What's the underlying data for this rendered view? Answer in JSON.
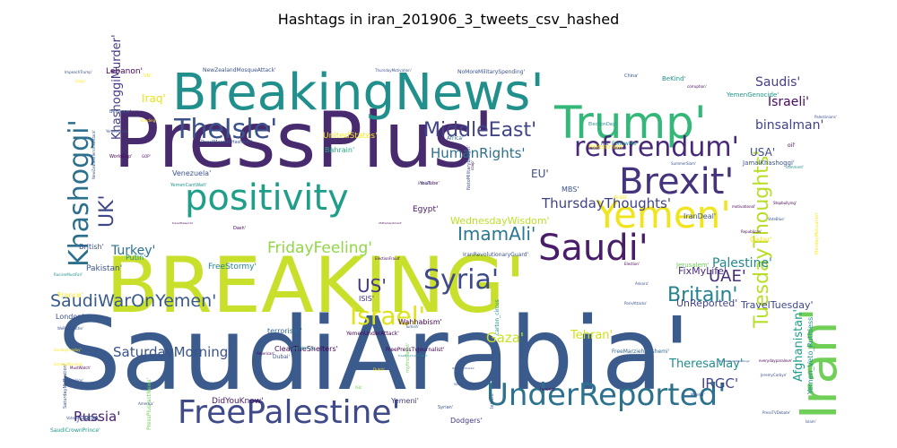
{
  "chart_data": {
    "type": "wordcloud",
    "title": "Hashtags in iran_201906_3_tweets_csv_hashed",
    "words": [
      {
        "text": "SaudiArabia'",
        "weight": 100,
        "color": "#3b5b8d"
      },
      {
        "text": "BREAKING'",
        "weight": 95,
        "color": "#c8df2c"
      },
      {
        "text": "PressPlus'",
        "weight": 92,
        "color": "#472b6e"
      },
      {
        "text": "BreakingNews'",
        "weight": 55,
        "color": "#21908d"
      },
      {
        "text": "Iran'",
        "weight": 52,
        "color": "#6fcf57"
      },
      {
        "text": "Trump'",
        "weight": 44,
        "color": "#35b779"
      },
      {
        "text": "Yemen'",
        "weight": 42,
        "color": "#f0e41e"
      },
      {
        "text": "Brexit'",
        "weight": 40,
        "color": "#45337d"
      },
      {
        "text": "Saudi'",
        "weight": 40,
        "color": "#4a1d6a"
      },
      {
        "text": "positivity",
        "weight": 38,
        "color": "#1f9e89"
      },
      {
        "text": "FreePalestine'",
        "weight": 36,
        "color": "#3e4a89"
      },
      {
        "text": "UnderReported'",
        "weight": 34,
        "color": "#2c728e"
      },
      {
        "text": "Khashoggi'",
        "weight": 33,
        "color": "#2d708e"
      },
      {
        "text": "referendum'",
        "weight": 30,
        "color": "#482878"
      },
      {
        "text": "TheIsle'",
        "weight": 30,
        "color": "#3b528b"
      },
      {
        "text": "Syria'",
        "weight": 30,
        "color": "#3e4989"
      },
      {
        "text": "Israel'",
        "weight": 28,
        "color": "#dde318"
      },
      {
        "text": "TuesdayThoughts'",
        "weight": 22,
        "color": "#b8de29"
      },
      {
        "text": "MiddleEast'",
        "weight": 22,
        "color": "#414487"
      },
      {
        "text": "UK'",
        "weight": 22,
        "color": "#3f4788"
      },
      {
        "text": "Britain'",
        "weight": 22,
        "color": "#26828e"
      },
      {
        "text": "ImamAli'",
        "weight": 20,
        "color": "#2a788e"
      },
      {
        "text": "US'",
        "weight": 20,
        "color": "#453781"
      },
      {
        "text": "SaudiWarOnYemen'",
        "weight": 19,
        "color": "#38598c"
      },
      {
        "text": "UAE'",
        "weight": 18,
        "color": "#46307e"
      },
      {
        "text": "FridayFeeling'",
        "weight": 17,
        "color": "#8fd744"
      },
      {
        "text": "Russia'",
        "weight": 15,
        "color": "#482173"
      },
      {
        "text": "Gaza'",
        "weight": 15,
        "color": "#cae11f"
      },
      {
        "text": "IRGC'",
        "weight": 15,
        "color": "#404688"
      },
      {
        "text": "ThursdayThoughts'",
        "weight": 15,
        "color": "#404387"
      },
      {
        "text": "HumanRights'",
        "weight": 15,
        "color": "#2e6f8e"
      },
      {
        "text": "SaturdayMorning'",
        "weight": 15,
        "color": "#3a538b"
      },
      {
        "text": "Palestine'",
        "weight": 14,
        "color": "#23888e"
      },
      {
        "text": "Israeli'",
        "weight": 14,
        "color": "#46085c"
      },
      {
        "text": "binsalman'",
        "weight": 14,
        "color": "#404387"
      },
      {
        "text": "Saudis'",
        "weight": 14,
        "color": "#433e85"
      },
      {
        "text": "Turkey'",
        "weight": 14,
        "color": "#2d718e"
      },
      {
        "text": "KhashoggiMurder'",
        "weight": 13,
        "color": "#433d84"
      },
      {
        "text": "Afghanistan'",
        "weight": 13,
        "color": "#1e9b8a"
      },
      {
        "text": "TheresaMay'",
        "weight": 13,
        "color": "#228c8d"
      },
      {
        "text": "Tehran'",
        "weight": 13,
        "color": "#d0e11c"
      },
      {
        "text": "EU'",
        "weight": 12,
        "color": "#3d4e8a"
      },
      {
        "text": "Iraq'",
        "weight": 12,
        "color": "#e7e419"
      },
      {
        "text": "USA'",
        "weight": 12,
        "color": "#3e4c8a"
      },
      {
        "text": "MotivationalQuotes'",
        "weight": 11,
        "color": "#31688e"
      },
      {
        "text": "TravelTuesday'",
        "weight": 11,
        "color": "#3e4a89"
      },
      {
        "text": "UnReported'",
        "weight": 11,
        "color": "#414287"
      },
      {
        "text": "PeacewithIran'",
        "weight": 11,
        "color": "#2c738e"
      },
      {
        "text": "WednesdayWisdom'",
        "weight": 11,
        "color": "#bddf26"
      },
      {
        "text": "FixMyLife'",
        "weight": 10,
        "color": "#472c7a"
      },
      {
        "text": "DidYouKnow'",
        "weight": 9,
        "color": "#481769"
      },
      {
        "text": "Lebanon'",
        "weight": 9,
        "color": "#440154"
      },
      {
        "text": "UnitedStates'",
        "weight": 9,
        "color": "#fde725"
      },
      {
        "text": "Pakistan'",
        "weight": 9,
        "color": "#3b528b"
      },
      {
        "text": "Egypt'",
        "weight": 9,
        "color": "#48186a"
      },
      {
        "text": "FreeStormy'",
        "weight": 9,
        "color": "#25838e"
      },
      {
        "text": "Yemeni'",
        "weight": 8,
        "color": "#424086"
      },
      {
        "text": "Dodgers'",
        "weight": 8,
        "color": "#453882"
      },
      {
        "text": "JCPOA'",
        "weight": 8,
        "color": "#3e4989"
      },
      {
        "text": "London'",
        "weight": 8,
        "color": "#3b528b"
      },
      {
        "text": "Yemen_Veto_Ruthless",
        "weight": 8,
        "color": "#1f968b"
      },
      {
        "text": "France'",
        "weight": 8,
        "color": "#fde725"
      },
      {
        "text": "Bahrain'",
        "weight": 8,
        "color": "#27ad81"
      },
      {
        "text": "Putin'",
        "weight": 8,
        "color": "#238a8d"
      },
      {
        "text": "British'",
        "weight": 8,
        "color": "#3b528b"
      },
      {
        "text": "Venezuela'",
        "weight": 8,
        "color": "#3b528b"
      },
      {
        "text": "ISIS'",
        "weight": 8,
        "color": "#46327e"
      },
      {
        "text": "Qatar'",
        "weight": 8,
        "color": "#fde725"
      },
      {
        "text": "Wahhabism'",
        "weight": 8,
        "color": "#440154"
      },
      {
        "text": "terrorism'",
        "weight": 8,
        "color": "#31688e"
      },
      {
        "text": "ClearTheShelters'",
        "weight": 8,
        "color": "#440154"
      },
      {
        "text": "MBS'",
        "weight": 8,
        "color": "#3b528b"
      },
      {
        "text": "IranDeal'",
        "weight": 8,
        "color": "#3b528b"
      },
      {
        "text": "Jerusalem'",
        "weight": 7,
        "color": "#6ece58"
      },
      {
        "text": "JamalKhashoggi'",
        "weight": 7,
        "color": "#3b528b"
      },
      {
        "text": "Palestinian'",
        "weight": 7,
        "color": "#fde725"
      },
      {
        "text": "BeKind'",
        "weight": 7,
        "color": "#21918c"
      },
      {
        "text": "YemenGenocide'",
        "weight": 7,
        "color": "#1f968b"
      },
      {
        "text": "NewZealandMosqueAttack'",
        "weight": 6,
        "color": "#3b528b"
      },
      {
        "text": "IranRevolutionaryGuard'",
        "weight": 6,
        "color": "#3b528b"
      },
      {
        "text": "FreeMarziehHashemi'",
        "weight": 6,
        "color": "#31688e"
      },
      {
        "text": "FreePressTvJournalist'",
        "weight": 6,
        "color": "#440154"
      },
      {
        "text": "NoMoreMilitarySpending'",
        "weight": 6,
        "color": "#3b528b"
      },
      {
        "text": "carton_circus",
        "weight": 6,
        "color": "#1f968b"
      },
      {
        "text": "SaudiCrownPrince'",
        "weight": 6,
        "color": "#1f968b"
      },
      {
        "text": "PressPlusFactNews'",
        "weight": 6,
        "color": "#6ece58"
      },
      {
        "text": "YemenUnderAttack'",
        "weight": 6,
        "color": "#440154"
      },
      {
        "text": "Arab'",
        "weight": 6,
        "color": "#fde725"
      },
      {
        "text": "Africa'",
        "weight": 6,
        "color": "#31688e"
      },
      {
        "text": "FollowMe'",
        "weight": 6,
        "color": "#21918c"
      },
      {
        "text": "Dubai'",
        "weight": 6,
        "color": "#3b528b"
      },
      {
        "text": "oil'",
        "weight": 6,
        "color": "#440154"
      },
      {
        "text": "China'",
        "weight": 5,
        "color": "#3b528b"
      },
      {
        "text": "WorldCup'",
        "weight": 5,
        "color": "#440154"
      },
      {
        "text": "BeHappy'",
        "weight": 5,
        "color": "#3b528b"
      },
      {
        "text": "UN'",
        "weight": 5,
        "color": "#fde725"
      },
      {
        "text": "Dash'",
        "weight": 5,
        "color": "#440154"
      },
      {
        "text": "Pray4MarziehHashemi'",
        "weight": 5,
        "color": "#3b528b"
      },
      {
        "text": "YemenCantWait'",
        "weight": 5,
        "color": "#1f968b"
      },
      {
        "text": "MondayMotivation'",
        "weight": 5,
        "color": "#fde725"
      },
      {
        "text": "myfirstTweet'",
        "weight": 5,
        "color": "#6ece58"
      },
      {
        "text": "leisure'",
        "weight": 5,
        "color": "#3b528b"
      },
      {
        "text": "Syrian'",
        "weight": 5,
        "color": "#3b528b"
      },
      {
        "text": "SaturdayMotivation'",
        "weight": 5,
        "color": "#3b528b"
      },
      {
        "text": "ElectionDay'",
        "weight": 5,
        "color": "#21918c"
      },
      {
        "text": "NotoMilitaryBudget'",
        "weight": 5,
        "color": "#3b528b"
      },
      {
        "text": "YouTube'",
        "weight": 5,
        "color": "#440154"
      },
      {
        "text": "RacismMustFall'",
        "weight": 4,
        "color": "#21918c"
      },
      {
        "text": "WeRepSeattle'",
        "weight": 4,
        "color": "#3b528b"
      },
      {
        "text": "technology'",
        "weight": 4,
        "color": "#3b528b"
      },
      {
        "text": "VoterFraud2018'",
        "weight": 4,
        "color": "#3b528b"
      },
      {
        "text": "Islam'",
        "weight": 4,
        "color": "#3b528b"
      },
      {
        "text": "Europe'",
        "weight": 4,
        "color": "#3b528b"
      },
      {
        "text": "ThursdayMotivation'",
        "weight": 4,
        "color": "#3b528b"
      },
      {
        "text": "NewZealandTerroristAttack'",
        "weight": 4,
        "color": "#3b528b"
      },
      {
        "text": "ISIL'",
        "weight": 4,
        "color": "#6ece58"
      },
      {
        "text": "Trending'",
        "weight": 4,
        "color": "#fde725"
      },
      {
        "text": "GOP'",
        "weight": 4,
        "color": "#440154"
      },
      {
        "text": "ImpeachTrump'",
        "weight": 4,
        "color": "#3b528b"
      },
      {
        "text": "YemenCrisis'",
        "weight": 4,
        "color": "#3b528b"
      },
      {
        "text": "motivational'",
        "weight": 4,
        "color": "#440154"
      },
      {
        "text": "VoteBlue'",
        "weight": 4,
        "color": "#3b528b"
      },
      {
        "text": "Republican'",
        "weight": 4,
        "color": "#440154"
      },
      {
        "text": "ElectionFraud'",
        "weight": 4,
        "color": "#440154"
      },
      {
        "text": "coup'",
        "weight": 4,
        "color": "#440154"
      },
      {
        "text": "comment'",
        "weight": 4,
        "color": "#21918c"
      },
      {
        "text": "Flint'",
        "weight": 4,
        "color": "#3b528b"
      },
      {
        "text": "Palestinians'",
        "weight": 4,
        "color": "#3b528b"
      },
      {
        "text": "SummerSlam'",
        "weight": 4,
        "color": "#3b528b"
      },
      {
        "text": "Turkish'",
        "weight": 4,
        "color": "#3b528b"
      },
      {
        "text": "terrorist'",
        "weight": 4,
        "color": "#440154"
      },
      {
        "text": "ParisAttacks'",
        "weight": 4,
        "color": "#3b528b"
      },
      {
        "text": "Election'",
        "weight": 4,
        "color": "#440154"
      },
      {
        "text": "Ankara'",
        "weight": 4,
        "color": "#3b528b"
      },
      {
        "text": "American'",
        "weight": 4,
        "color": "#440154"
      },
      {
        "text": "Mueller'",
        "weight": 4,
        "color": "#3b528b"
      },
      {
        "text": "Libya'",
        "weight": 4,
        "color": "#fde725"
      },
      {
        "text": "corruption'",
        "weight": 4,
        "color": "#440154"
      },
      {
        "text": "Stopbullying'",
        "weight": 4,
        "color": "#440154"
      },
      {
        "text": "SundayFunday'",
        "weight": 4,
        "color": "#fde725"
      },
      {
        "text": "SundayMorning'",
        "weight": 4,
        "color": "#fde725"
      },
      {
        "text": "MustWatch'",
        "weight": 4,
        "color": "#440154"
      },
      {
        "text": "America'",
        "weight": 4,
        "color": "#3b528b"
      },
      {
        "text": "Labour'",
        "weight": 4,
        "color": "#440154"
      },
      {
        "text": "Dutch'",
        "weight": 4,
        "color": "#fde725"
      },
      {
        "text": "Iranian'",
        "weight": 4,
        "color": "#3b528b"
      },
      {
        "text": "GoodMorning'",
        "weight": 4,
        "color": "#21918c"
      },
      {
        "text": "PressTVDebate'",
        "weight": 4,
        "color": "#3b528b"
      },
      {
        "text": "socialmedia'",
        "weight": 4,
        "color": "#3b528b"
      },
      {
        "text": "everydayparalove'",
        "weight": 3,
        "color": "#440154"
      },
      {
        "text": "JeremyCorbyn'",
        "weight": 3,
        "color": "#3b528b"
      },
      {
        "text": "travelthewor1d",
        "weight": 3,
        "color": "#440154"
      },
      {
        "text": "2Sthamendment'",
        "weight": 3,
        "color": "#440154"
      },
      {
        "text": "ItsWonderfulLife'",
        "weight": 3,
        "color": "#3b528b"
      },
      {
        "text": "NewZealandShootings'",
        "weight": 3,
        "color": "#3b528b"
      },
      {
        "text": "FreePressTvJournalist'",
        "weight": 3,
        "color": "#21918c"
      }
    ]
  }
}
